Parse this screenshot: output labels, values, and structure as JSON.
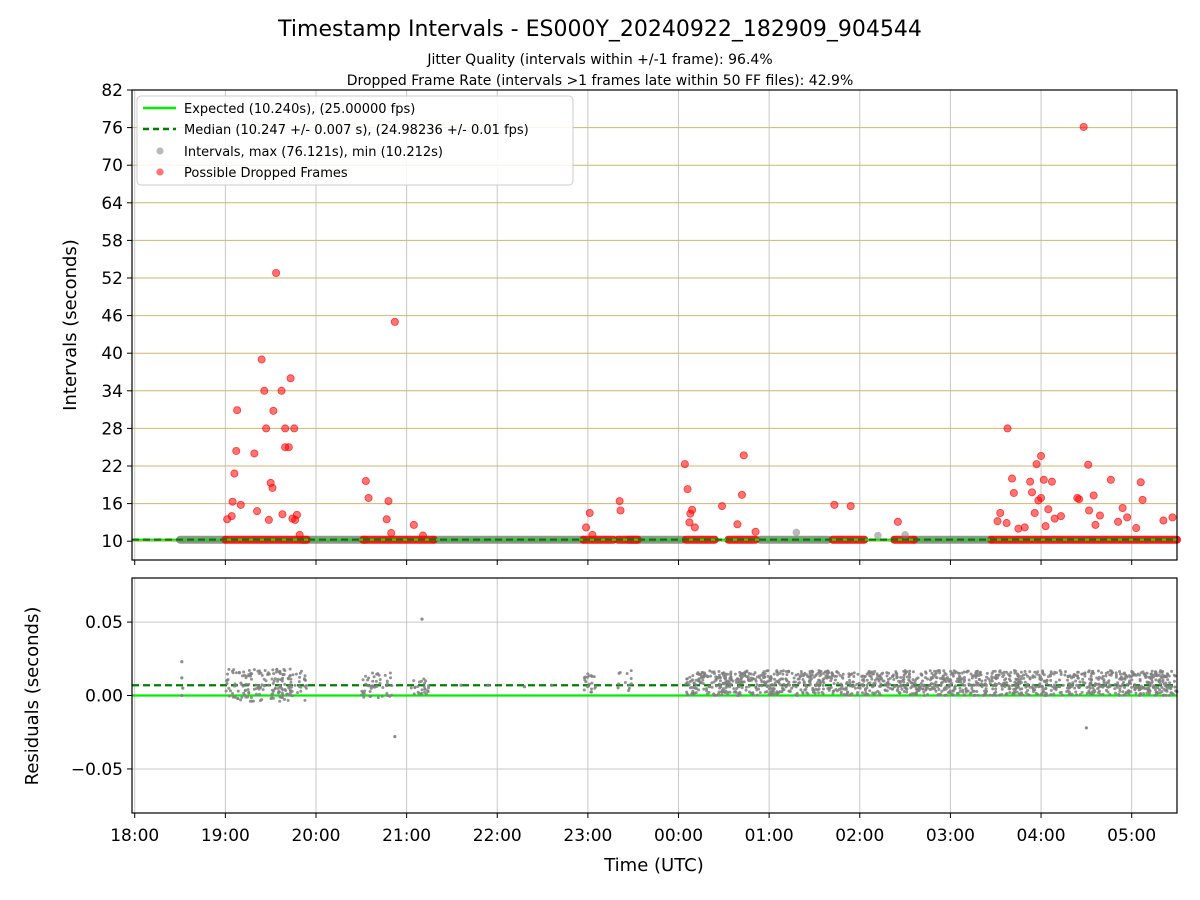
{
  "figure": {
    "title": "Timestamp Intervals - ES000Y_20240922_182909_904544",
    "subtitle_jitter": "Jitter Quality (intervals within +/-1 frame): 96.4%",
    "subtitle_dropped": "Dropped Frame Rate (intervals >1 frames late within 50 FF files): 42.9%"
  },
  "colors": {
    "expected": "#00ee00",
    "median": "#008000",
    "interval": "#808080",
    "dropped": "#ff0000",
    "hgrid_top": "#d2b46e",
    "grid": "#c8c8c8"
  },
  "chart_data": [
    {
      "type": "scatter",
      "ylabel": "Intervals (seconds)",
      "xlabel": "",
      "xlim_hours": [
        17.97,
        29.5
      ],
      "ylim": [
        7.0,
        82.0
      ],
      "yticks": [
        10,
        16,
        22,
        28,
        34,
        40,
        46,
        52,
        58,
        64,
        70,
        76,
        82
      ],
      "ytick_labels": [
        "10",
        "16",
        "22",
        "28",
        "34",
        "40",
        "46",
        "52",
        "58",
        "64",
        "70",
        "76",
        "82"
      ],
      "xtick_hours": [
        18,
        19,
        20,
        21,
        22,
        23,
        24,
        25,
        26,
        27,
        28,
        29
      ],
      "grid": true,
      "legend": {
        "placement": "upper left",
        "entries": [
          {
            "key": "expected",
            "label": "Expected (10.240s), (25.00000 fps)",
            "style": "solid-line"
          },
          {
            "key": "median",
            "label": "Median (10.247 +/- 0.007 s), (24.98236 +/- 0.01 fps)",
            "style": "dashed-line"
          },
          {
            "key": "interval",
            "label": "Intervals, max (76.121s), min (10.212s)",
            "style": "marker"
          },
          {
            "key": "dropped",
            "label": "Possible Dropped Frames",
            "style": "marker"
          }
        ]
      },
      "expected_interval": 10.24,
      "median_interval": 10.247,
      "interval_baseline_segments_hours": [
        [
          18.5,
          19.0
        ],
        [
          19.85,
          20.55
        ],
        [
          21.3,
          22.95
        ],
        [
          23.45,
          24.05
        ],
        [
          24.9,
          25.65
        ],
        [
          26.6,
          27.45
        ]
      ],
      "dropped_baseline_segments_hours": [
        [
          19.0,
          19.9
        ],
        [
          20.52,
          21.3
        ],
        [
          22.95,
          23.28
        ],
        [
          23.33,
          23.55
        ],
        [
          24.08,
          24.4
        ],
        [
          24.55,
          24.85
        ],
        [
          25.7,
          26.05
        ],
        [
          26.38,
          26.6
        ],
        [
          27.45,
          29.5
        ]
      ],
      "intervals": [
        {
          "x": 25.3,
          "y": 11.4
        },
        {
          "x": 26.2,
          "y": 10.9
        },
        {
          "x": 26.5,
          "y": 11.0
        }
      ],
      "dropped_frames": [
        {
          "x": 19.02,
          "y": 13.5
        },
        {
          "x": 19.07,
          "y": 14.0
        },
        {
          "x": 19.08,
          "y": 16.3
        },
        {
          "x": 19.1,
          "y": 20.8
        },
        {
          "x": 19.12,
          "y": 24.4
        },
        {
          "x": 19.13,
          "y": 30.9
        },
        {
          "x": 19.17,
          "y": 15.8
        },
        {
          "x": 19.32,
          "y": 24.0
        },
        {
          "x": 19.35,
          "y": 14.8
        },
        {
          "x": 19.4,
          "y": 39.0
        },
        {
          "x": 19.43,
          "y": 34.0
        },
        {
          "x": 19.45,
          "y": 28.0
        },
        {
          "x": 19.48,
          "y": 13.4
        },
        {
          "x": 19.5,
          "y": 19.3
        },
        {
          "x": 19.52,
          "y": 18.5
        },
        {
          "x": 19.53,
          "y": 30.8
        },
        {
          "x": 19.56,
          "y": 52.8
        },
        {
          "x": 19.62,
          "y": 34.0
        },
        {
          "x": 19.63,
          "y": 14.3
        },
        {
          "x": 19.66,
          "y": 28.0
        },
        {
          "x": 19.66,
          "y": 25.0
        },
        {
          "x": 19.7,
          "y": 25.0
        },
        {
          "x": 19.72,
          "y": 36.0
        },
        {
          "x": 19.74,
          "y": 13.6
        },
        {
          "x": 19.76,
          "y": 28.0
        },
        {
          "x": 19.77,
          "y": 13.4
        },
        {
          "x": 19.79,
          "y": 14.2
        },
        {
          "x": 19.82,
          "y": 11.0
        },
        {
          "x": 20.55,
          "y": 19.6
        },
        {
          "x": 20.58,
          "y": 16.9
        },
        {
          "x": 20.78,
          "y": 13.5
        },
        {
          "x": 20.8,
          "y": 16.4
        },
        {
          "x": 20.83,
          "y": 11.3
        },
        {
          "x": 20.87,
          "y": 45.0
        },
        {
          "x": 21.08,
          "y": 12.6
        },
        {
          "x": 21.18,
          "y": 10.9
        },
        {
          "x": 22.98,
          "y": 12.2
        },
        {
          "x": 23.02,
          "y": 14.5
        },
        {
          "x": 23.05,
          "y": 11.0
        },
        {
          "x": 23.35,
          "y": 16.4
        },
        {
          "x": 23.36,
          "y": 14.9
        },
        {
          "x": 24.07,
          "y": 22.3
        },
        {
          "x": 24.1,
          "y": 18.3
        },
        {
          "x": 24.12,
          "y": 13.0
        },
        {
          "x": 24.13,
          "y": 14.4
        },
        {
          "x": 24.15,
          "y": 15.0
        },
        {
          "x": 24.18,
          "y": 12.2
        },
        {
          "x": 24.48,
          "y": 15.6
        },
        {
          "x": 24.65,
          "y": 12.7
        },
        {
          "x": 24.7,
          "y": 17.4
        },
        {
          "x": 24.72,
          "y": 23.7
        },
        {
          "x": 24.85,
          "y": 11.5
        },
        {
          "x": 25.72,
          "y": 15.8
        },
        {
          "x": 25.9,
          "y": 15.6
        },
        {
          "x": 26.42,
          "y": 13.1
        },
        {
          "x": 27.52,
          "y": 13.2
        },
        {
          "x": 27.55,
          "y": 14.5
        },
        {
          "x": 27.62,
          "y": 12.9
        },
        {
          "x": 27.63,
          "y": 28.0
        },
        {
          "x": 27.68,
          "y": 20.0
        },
        {
          "x": 27.7,
          "y": 17.7
        },
        {
          "x": 27.75,
          "y": 12.0
        },
        {
          "x": 27.82,
          "y": 12.2
        },
        {
          "x": 27.88,
          "y": 19.5
        },
        {
          "x": 27.9,
          "y": 17.8
        },
        {
          "x": 27.93,
          "y": 14.5
        },
        {
          "x": 27.95,
          "y": 22.3
        },
        {
          "x": 27.97,
          "y": 16.5
        },
        {
          "x": 28.0,
          "y": 16.9
        },
        {
          "x": 28.0,
          "y": 23.6
        },
        {
          "x": 28.03,
          "y": 19.8
        },
        {
          "x": 28.05,
          "y": 12.4
        },
        {
          "x": 28.08,
          "y": 15.1
        },
        {
          "x": 28.12,
          "y": 19.5
        },
        {
          "x": 28.15,
          "y": 13.6
        },
        {
          "x": 28.22,
          "y": 14.0
        },
        {
          "x": 28.4,
          "y": 16.9
        },
        {
          "x": 28.42,
          "y": 16.7
        },
        {
          "x": 28.47,
          "y": 76.1
        },
        {
          "x": 28.52,
          "y": 22.2
        },
        {
          "x": 28.53,
          "y": 14.9
        },
        {
          "x": 28.58,
          "y": 17.3
        },
        {
          "x": 28.6,
          "y": 12.6
        },
        {
          "x": 28.65,
          "y": 14.1
        },
        {
          "x": 28.77,
          "y": 19.8
        },
        {
          "x": 28.85,
          "y": 13.1
        },
        {
          "x": 28.9,
          "y": 15.3
        },
        {
          "x": 28.95,
          "y": 13.8
        },
        {
          "x": 29.05,
          "y": 12.1
        },
        {
          "x": 29.1,
          "y": 19.4
        },
        {
          "x": 29.12,
          "y": 16.6
        },
        {
          "x": 29.35,
          "y": 13.3
        },
        {
          "x": 29.45,
          "y": 13.8
        }
      ]
    },
    {
      "type": "scatter",
      "ylabel": "Residuals (seconds)",
      "xlabel": "Time (UTC)",
      "xlim_hours": [
        17.97,
        29.5
      ],
      "ylim": [
        -0.08,
        0.08
      ],
      "yticks": [
        0.05,
        0.0,
        -0.05
      ],
      "ytick_labels": [
        "0.05",
        "0.00",
        "−0.05"
      ],
      "xtick_hours": [
        18,
        19,
        20,
        21,
        22,
        23,
        24,
        25,
        26,
        27,
        28,
        29
      ],
      "xtick_labels": [
        "18:00",
        "19:00",
        "20:00",
        "21:00",
        "22:00",
        "23:00",
        "00:00",
        "01:00",
        "02:00",
        "03:00",
        "04:00",
        "05:00"
      ],
      "grid": true,
      "expected_residual": 0.0,
      "median_residual": 0.007,
      "residual_clusters": [
        {
          "x_start": 19.0,
          "x_end": 19.9,
          "y_min": -0.004,
          "y_max": 0.018,
          "count": 180
        },
        {
          "x_start": 20.5,
          "x_end": 20.85,
          "y_min": -0.002,
          "y_max": 0.016,
          "count": 45
        },
        {
          "x_start": 21.05,
          "x_end": 21.25,
          "y_min": 0.001,
          "y_max": 0.012,
          "count": 25
        },
        {
          "x_start": 22.95,
          "x_end": 23.1,
          "y_min": 0.002,
          "y_max": 0.015,
          "count": 20
        },
        {
          "x_start": 23.3,
          "x_end": 23.5,
          "y_min": 0.003,
          "y_max": 0.017,
          "count": 12
        },
        {
          "x_start": 24.08,
          "x_end": 29.5,
          "y_min": 0.0,
          "y_max": 0.017,
          "count": 1400
        }
      ],
      "residual_points": [
        {
          "x": 18.52,
          "y": 0.023
        },
        {
          "x": 18.52,
          "y": 0.012
        },
        {
          "x": 18.53,
          "y": 0.005
        },
        {
          "x": 18.52,
          "y": 0.0
        },
        {
          "x": 20.87,
          "y": -0.028
        },
        {
          "x": 21.17,
          "y": 0.052
        },
        {
          "x": 28.5,
          "y": -0.022
        },
        {
          "x": 21.6,
          "y": 0.007
        },
        {
          "x": 21.9,
          "y": 0.007
        },
        {
          "x": 22.3,
          "y": 0.006
        },
        {
          "x": 22.6,
          "y": 0.007
        }
      ]
    }
  ]
}
